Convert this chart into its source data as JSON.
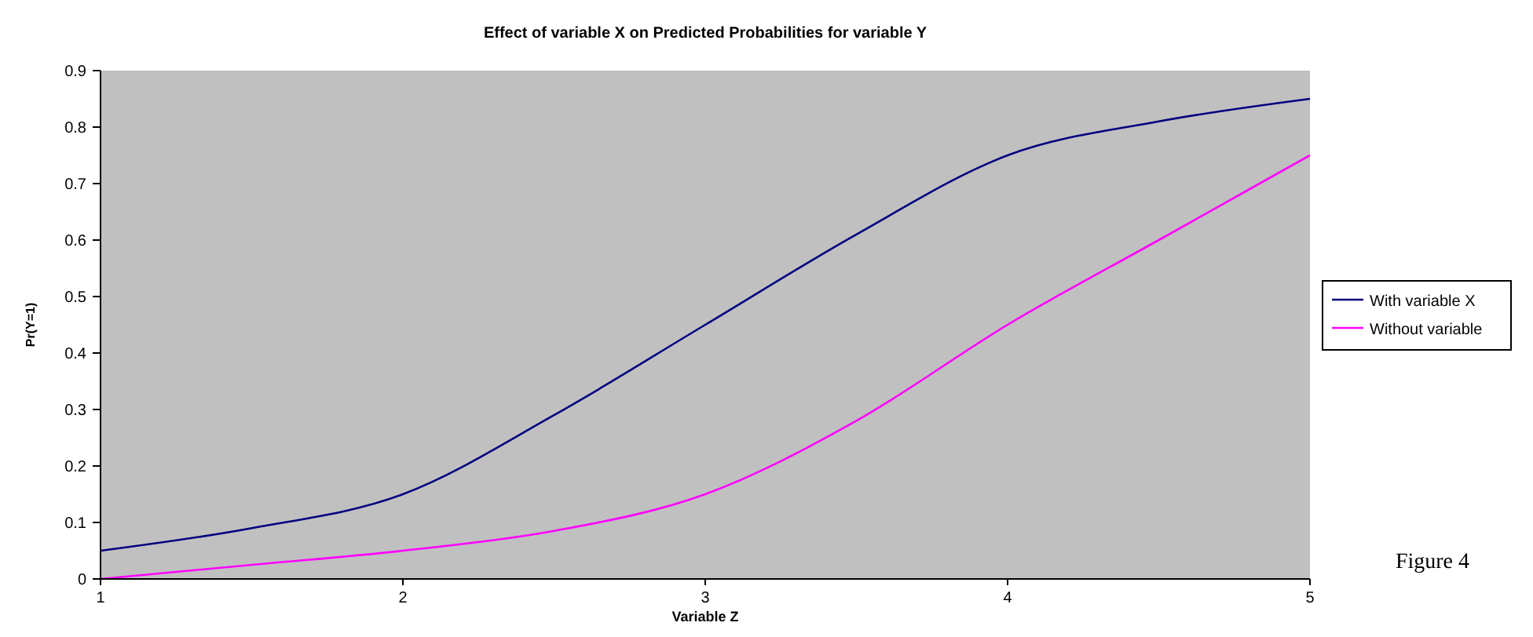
{
  "chart_data": {
    "type": "line",
    "title": "Effect of variable X on Predicted Probabilities for variable Y",
    "xlabel": "Variable Z",
    "ylabel": "Pr(Y=1)",
    "x": [
      1,
      1.5,
      2,
      2.5,
      3,
      3.5,
      4,
      4.5,
      5
    ],
    "series": [
      {
        "name": "With variable X",
        "color": "#000080",
        "values": [
          0.05,
          0.09,
          0.15,
          0.29,
          0.45,
          0.61,
          0.75,
          0.81,
          0.85
        ]
      },
      {
        "name": "Without variable",
        "color": "#ff00ff",
        "values": [
          0,
          0.025,
          0.05,
          0.085,
          0.15,
          0.28,
          0.45,
          0.6,
          0.75
        ]
      }
    ],
    "xlim": [
      1,
      5
    ],
    "xticks": [
      1,
      2,
      3,
      4,
      5
    ],
    "ylim": [
      0,
      0.9
    ],
    "yticks": [
      0,
      0.1,
      0.2,
      0.3,
      0.4,
      0.5,
      0.6,
      0.7,
      0.8,
      0.9
    ],
    "grid": false,
    "legend": "right",
    "marker": "none",
    "line_style": "solid",
    "annotations": [
      "Figure 4"
    ]
  }
}
